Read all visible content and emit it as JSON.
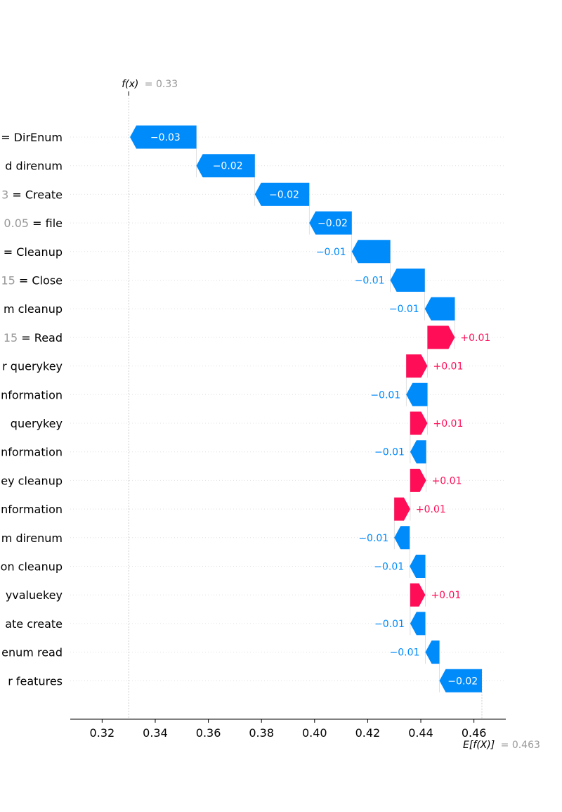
{
  "chart_data": {
    "type": "bar",
    "subtype": "waterfall",
    "fx": {
      "name": "f(x)",
      "value_text": "= 0.33",
      "value": 0.33
    },
    "ex": {
      "name": "E[f(X)]",
      "value_text": "= 0.463",
      "value": 0.463
    },
    "xlim": [
      0.308,
      0.472
    ],
    "xticks": [
      0.32,
      0.34,
      0.36,
      0.38,
      0.4,
      0.42,
      0.44,
      0.46
    ],
    "xtick_labels": [
      "0.32",
      "0.34",
      "0.36",
      "0.38",
      "0.40",
      "0.42",
      "0.44",
      "0.46"
    ],
    "grid": "horizontal dotted",
    "colors": {
      "positive": "#ff0d57",
      "negative": "#008bfb",
      "value_text": "#999999",
      "axis": "#000000",
      "grid": "#e0e0e0"
    },
    "features": [
      {
        "value": "",
        "name": "= DirEnum",
        "start": 0.3555,
        "end": 0.3305,
        "label": "−0.03"
      },
      {
        "value": "",
        "name": "d direnum",
        "start": 0.3775,
        "end": 0.3555,
        "label": "−0.02"
      },
      {
        "value": "3",
        "name": "= Create",
        "start": 0.398,
        "end": 0.3775,
        "label": "−0.02"
      },
      {
        "value": "0.05",
        "name": "= file",
        "start": 0.414,
        "end": 0.398,
        "label": "−0.02"
      },
      {
        "value": "",
        "name": "= Cleanup",
        "start": 0.4285,
        "end": 0.414,
        "label": "−0.01"
      },
      {
        "value": "15",
        "name": "= Close",
        "start": 0.4415,
        "end": 0.4285,
        "label": "−0.01"
      },
      {
        "value": "",
        "name": "m cleanup",
        "start": 0.4528,
        "end": 0.4415,
        "label": "−0.01"
      },
      {
        "value": "15",
        "name": "= Read",
        "start": 0.4425,
        "end": 0.4528,
        "label": "+0.01"
      },
      {
        "value": "",
        "name": "r querykey",
        "start": 0.4345,
        "end": 0.4425,
        "label": "+0.01"
      },
      {
        "value": "",
        "name": "nformation",
        "start": 0.4425,
        "end": 0.4345,
        "label": "−0.01"
      },
      {
        "value": "",
        "name": "querykey",
        "start": 0.436,
        "end": 0.4425,
        "label": "+0.01"
      },
      {
        "value": "",
        "name": "nformation",
        "start": 0.442,
        "end": 0.436,
        "label": "−0.01"
      },
      {
        "value": "",
        "name": "ey cleanup",
        "start": 0.436,
        "end": 0.442,
        "label": "+0.01"
      },
      {
        "value": "",
        "name": "nformation",
        "start": 0.43,
        "end": 0.436,
        "label": "+0.01"
      },
      {
        "value": "",
        "name": "m direnum",
        "start": 0.4358,
        "end": 0.43,
        "label": "−0.01"
      },
      {
        "value": "",
        "name": "on cleanup",
        "start": 0.4417,
        "end": 0.4358,
        "label": "−0.01"
      },
      {
        "value": "",
        "name": "yvaluekey",
        "start": 0.436,
        "end": 0.4417,
        "label": "+0.01"
      },
      {
        "value": "",
        "name": "ate create",
        "start": 0.4417,
        "end": 0.436,
        "label": "−0.01"
      },
      {
        "value": "",
        "name": "enum read",
        "start": 0.447,
        "end": 0.4417,
        "label": "−0.01"
      },
      {
        "value": "",
        "name": "r features",
        "start": 0.463,
        "end": 0.447,
        "label": "−0.02"
      }
    ]
  }
}
